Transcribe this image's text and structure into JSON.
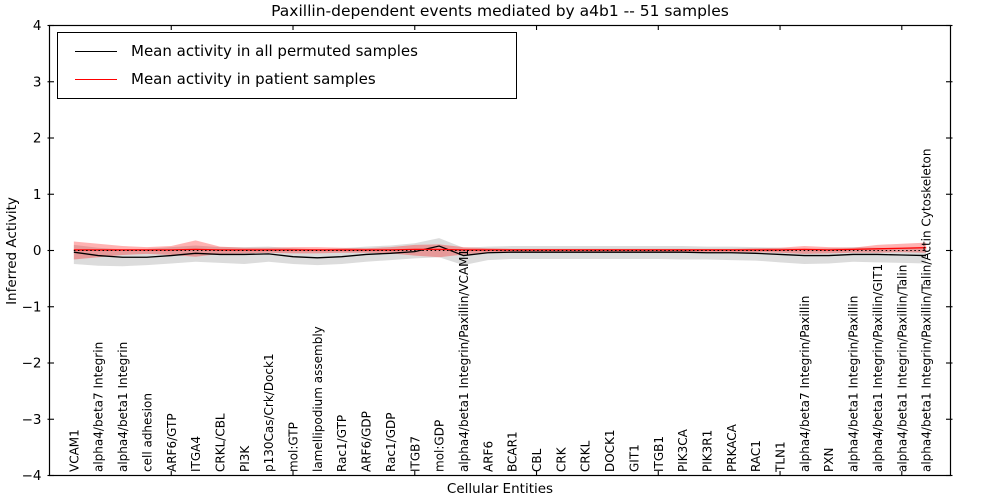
{
  "chart_data": {
    "type": "line",
    "title": "Paxillin-dependent events mediated by a4b1 -- 51 samples",
    "xlabel": "Cellular Entities",
    "ylabel": "Inferred Activity",
    "ylim": [
      -4,
      4
    ],
    "yticks": [
      -4,
      -3,
      -2,
      -1,
      0,
      1,
      2,
      3,
      4
    ],
    "grid": false,
    "legend_position": "upper left",
    "zero_line": {
      "y": 0,
      "style": "dotted",
      "color": "#000000"
    },
    "categories": [
      "VCAM1",
      "alpha4/beta7 Integrin",
      "alpha4/beta1 Integrin",
      "cell adhesion",
      "ARF6/GTP",
      "ITGA4",
      "CRKL/CBL",
      "PI3K",
      "p130Cas/Crk/Dock1",
      "mol:GTP",
      "lamellipodium assembly",
      "Rac1/GTP",
      "ARF6/GDP",
      "Rac1/GDP",
      "ITGB7",
      "mol:GDP",
      "alpha4/beta1 Integrin/Paxillin/VCAM1",
      "ARF6",
      "BCAR1",
      "CBL",
      "CRK",
      "CRKL",
      "DOCK1",
      "GIT1",
      "ITGB1",
      "PIK3CA",
      "PIK3R1",
      "PRKACA",
      "RAC1",
      "TLN1",
      "alpha4/beta7 Integrin/Paxillin",
      "PXN",
      "alpha4/beta1 Integrin/Paxillin",
      "alpha4/beta1 Integrin/Paxillin/GIT1",
      "alpha4/beta1 Integrin/Paxillin/Talin",
      "alpha4/beta1 Integrin/Paxillin/Talin/Actin Cytoskeleton"
    ],
    "series": [
      {
        "name": "Mean activity in all permuted samples",
        "color": "#000000",
        "values": [
          -0.03,
          -0.09,
          -0.12,
          -0.12,
          -0.09,
          -0.05,
          -0.07,
          -0.07,
          -0.06,
          -0.11,
          -0.13,
          -0.11,
          -0.07,
          -0.05,
          -0.02,
          0.08,
          -0.09,
          -0.04,
          -0.03,
          -0.03,
          -0.03,
          -0.03,
          -0.03,
          -0.03,
          -0.03,
          -0.03,
          -0.04,
          -0.04,
          -0.05,
          -0.07,
          -0.09,
          -0.09,
          -0.07,
          -0.07,
          -0.08,
          -0.09
        ],
        "band_upper": [
          0.1,
          0.05,
          0.02,
          0.03,
          0.06,
          0.09,
          0.06,
          0.06,
          0.07,
          0.04,
          0.02,
          0.04,
          0.07,
          0.09,
          0.13,
          0.22,
          0.05,
          0.07,
          0.08,
          0.08,
          0.08,
          0.08,
          0.08,
          0.08,
          0.08,
          0.08,
          0.07,
          0.07,
          0.06,
          0.05,
          0.03,
          0.04,
          0.06,
          0.05,
          0.04,
          0.03
        ],
        "band_lower": [
          -0.24,
          -0.27,
          -0.28,
          -0.26,
          -0.23,
          -0.2,
          -0.22,
          -0.24,
          -0.2,
          -0.24,
          -0.26,
          -0.24,
          -0.2,
          -0.17,
          -0.14,
          -0.12,
          -0.26,
          -0.17,
          -0.15,
          -0.15,
          -0.15,
          -0.15,
          -0.15,
          -0.15,
          -0.15,
          -0.16,
          -0.16,
          -0.17,
          -0.18,
          -0.21,
          -0.24,
          -0.23,
          -0.2,
          -0.21,
          -0.22,
          -0.23
        ],
        "band_color": "rgba(128,128,128,0.28)"
      },
      {
        "name": "Mean activity in patient samples",
        "color": "#ff0000",
        "values": [
          0.01,
          0.01,
          0.01,
          0.01,
          0.01,
          0.02,
          0.01,
          0.01,
          0.01,
          0.01,
          0.01,
          0.01,
          0.01,
          0.01,
          0.02,
          0.02,
          0.01,
          0.01,
          0.01,
          0.01,
          0.01,
          0.01,
          0.01,
          0.01,
          0.01,
          0.01,
          0.01,
          0.01,
          0.01,
          0.01,
          0.02,
          0.01,
          0.02,
          0.03,
          0.04,
          0.05
        ],
        "band_upper": [
          0.16,
          0.12,
          0.08,
          0.06,
          0.08,
          0.18,
          0.07,
          0.05,
          0.05,
          0.06,
          0.06,
          0.05,
          0.04,
          0.06,
          0.1,
          0.11,
          0.06,
          0.04,
          0.03,
          0.03,
          0.03,
          0.03,
          0.03,
          0.03,
          0.03,
          0.03,
          0.03,
          0.03,
          0.04,
          0.05,
          0.08,
          0.06,
          0.05,
          0.1,
          0.12,
          0.14
        ],
        "band_lower": [
          -0.16,
          -0.12,
          -0.08,
          -0.06,
          -0.08,
          -0.11,
          -0.06,
          -0.05,
          -0.04,
          -0.05,
          -0.05,
          -0.04,
          -0.04,
          -0.05,
          -0.09,
          -0.12,
          -0.07,
          -0.03,
          -0.03,
          -0.03,
          -0.03,
          -0.03,
          -0.03,
          -0.03,
          -0.03,
          -0.03,
          -0.03,
          -0.03,
          -0.03,
          -0.04,
          -0.06,
          -0.05,
          -0.04,
          -0.04,
          -0.03,
          -0.04
        ],
        "band_color": "rgba(255,0,0,0.30)"
      }
    ],
    "legend": [
      {
        "label": "Mean activity in all permuted samples",
        "color": "#000000"
      },
      {
        "label": "Mean activity in patient samples",
        "color": "#ff0000"
      }
    ]
  }
}
